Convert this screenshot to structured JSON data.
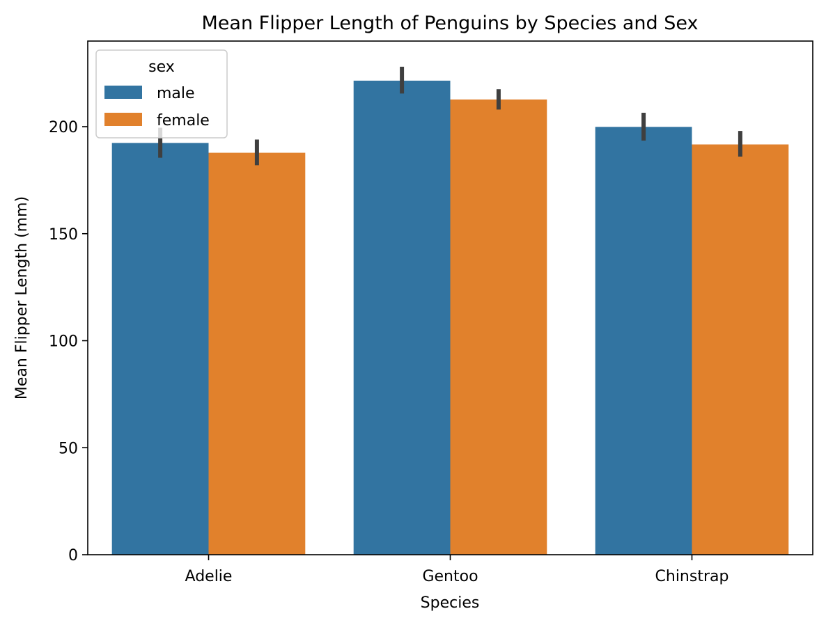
{
  "chart_data": {
    "type": "bar",
    "title": "Mean Flipper Length of Penguins by Species and Sex",
    "xlabel": "Species",
    "ylabel": "Mean Flipper Length (mm)",
    "categories": [
      "Adelie",
      "Gentoo",
      "Chinstrap"
    ],
    "ylim": [
      0,
      240
    ],
    "yticks": [
      0,
      50,
      100,
      150,
      200
    ],
    "grid": false,
    "legend": {
      "title": "sex",
      "placement": "top-left"
    },
    "series": [
      {
        "name": "male",
        "color": "#3274a1",
        "values": [
          192.4,
          221.5,
          199.9
        ],
        "ci_low": [
          185.5,
          215.5,
          193.5
        ],
        "ci_high": [
          199.5,
          228.0,
          206.5
        ]
      },
      {
        "name": "female",
        "color": "#e1812c",
        "values": [
          187.8,
          212.7,
          191.7
        ],
        "ci_low": [
          182.0,
          208.0,
          186.0
        ],
        "ci_high": [
          194.0,
          217.5,
          198.0
        ]
      }
    ],
    "errorbar_color": "#3f3f3f"
  }
}
